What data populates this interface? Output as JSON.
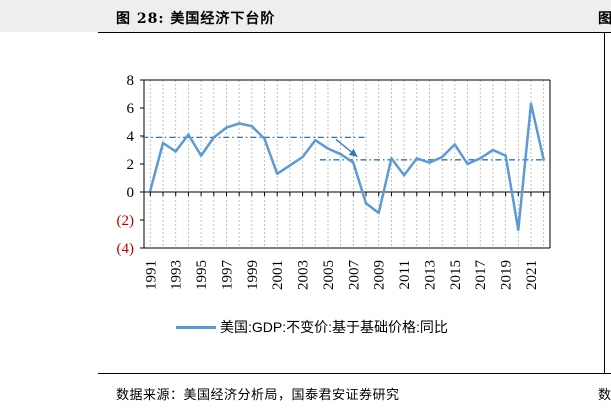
{
  "figure": {
    "title": "图 28:  美国经济下台阶",
    "right_fragment": "图",
    "source": "数据来源：美国经济分析局，国泰君安证券研究",
    "source_right_fragment": "数"
  },
  "chart_data": {
    "type": "line",
    "title": "图 28:  美国经济下台阶",
    "xlabel": "",
    "ylabel": "",
    "ylim": [
      -4,
      8
    ],
    "y_ticks": [
      8,
      6,
      4,
      2,
      0,
      -2,
      -4
    ],
    "y_tick_labels": [
      "8",
      "6",
      "4",
      "2",
      "0",
      "(2)",
      "(4)"
    ],
    "x_tick_labels": [
      "1991",
      "1993",
      "1995",
      "1997",
      "1999",
      "2001",
      "2003",
      "2005",
      "2007",
      "2009",
      "2011",
      "2013",
      "2015",
      "2017",
      "2019",
      "2021"
    ],
    "grid": "vertical dashed",
    "legend": "bottom",
    "series": [
      {
        "name": "美国:GDP:不变价:基于基础价格:同比",
        "color": "#5b9bd5",
        "x": [
          1991,
          1992,
          1993,
          1994,
          1995,
          1996,
          1997,
          1998,
          1999,
          2000,
          2001,
          2002,
          2003,
          2004,
          2005,
          2006,
          2007,
          2008,
          2009,
          2010,
          2011,
          2012,
          2013,
          2014,
          2015,
          2016,
          2017,
          2018,
          2019,
          2020,
          2021,
          2022
        ],
        "values": [
          0.1,
          3.5,
          2.9,
          4.1,
          2.6,
          3.9,
          4.6,
          4.9,
          4.7,
          3.8,
          1.3,
          1.9,
          2.5,
          3.7,
          3.1,
          2.7,
          2.1,
          -0.8,
          -1.5,
          2.4,
          1.2,
          2.4,
          2.1,
          2.5,
          3.4,
          2.0,
          2.4,
          3.0,
          2.6,
          -2.7,
          6.3,
          2.3
        ]
      }
    ],
    "reference_lines": [
      {
        "value": 3.9,
        "x_start": 1991,
        "x_end": 2008,
        "style": "dash-dot",
        "color": "#2e75b6"
      },
      {
        "value": 2.3,
        "x_start": 2005,
        "x_end": 2022,
        "style": "dash-dot",
        "color": "#2e75b6"
      }
    ],
    "annotations": [
      {
        "type": "arrow",
        "from": [
          2005,
          3.9
        ],
        "to": [
          2007,
          2.3
        ],
        "color": "#2e75b6"
      }
    ]
  }
}
